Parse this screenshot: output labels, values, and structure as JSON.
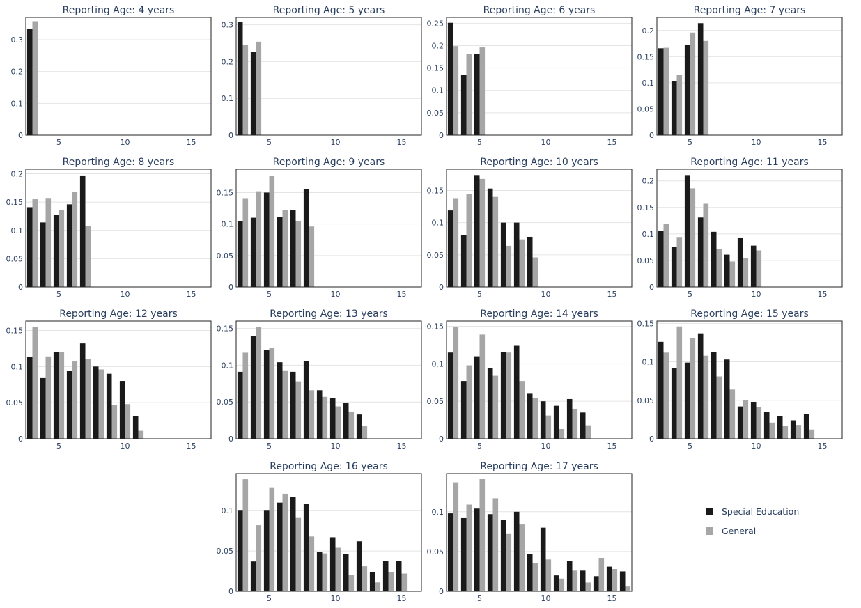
{
  "colors": {
    "special": "#1a1a1a",
    "general": "#a6a6a6",
    "grid": "#e4e4e4",
    "frame": "#222222"
  },
  "legend": {
    "position": "bottom-right",
    "items": [
      {
        "label": "Special Education",
        "color": "#1a1a1a"
      },
      {
        "label": "General",
        "color": "#a6a6a6"
      }
    ]
  },
  "chart_data": [
    {
      "type": "bar",
      "title": "Reporting Age: 4 years",
      "x": [
        3
      ],
      "series": [
        {
          "name": "Special Education",
          "values": [
            0.335
          ]
        },
        {
          "name": "General",
          "values": [
            0.358
          ]
        }
      ],
      "xlim": [
        2.5,
        16.5
      ],
      "ylim": [
        0,
        0.37
      ],
      "yticks": [
        0,
        0.1,
        0.2,
        0.3
      ],
      "xticks": [
        5,
        10,
        15
      ]
    },
    {
      "type": "bar",
      "title": "Reporting Age: 5 years",
      "x": [
        3,
        4
      ],
      "series": [
        {
          "name": "Special Education",
          "values": [
            0.307,
            0.227
          ]
        },
        {
          "name": "General",
          "values": [
            0.246,
            0.254
          ]
        }
      ],
      "xlim": [
        2.5,
        16.5
      ],
      "ylim": [
        0,
        0.32
      ],
      "yticks": [
        0,
        0.1,
        0.2,
        0.3
      ],
      "xticks": [
        5,
        10,
        15
      ]
    },
    {
      "type": "bar",
      "title": "Reporting Age: 6 years",
      "x": [
        3,
        4,
        5
      ],
      "series": [
        {
          "name": "Special Education",
          "values": [
            0.251,
            0.135,
            0.182
          ]
        },
        {
          "name": "General",
          "values": [
            0.199,
            0.182,
            0.196
          ]
        }
      ],
      "xlim": [
        2.5,
        16.5
      ],
      "ylim": [
        0,
        0.263
      ],
      "yticks": [
        0,
        0.05,
        0.1,
        0.15,
        0.2,
        0.25
      ],
      "xticks": [
        5,
        10,
        15
      ]
    },
    {
      "type": "bar",
      "title": "Reporting Age: 7 years",
      "x": [
        3,
        4,
        5,
        6
      ],
      "series": [
        {
          "name": "Special Education",
          "values": [
            0.166,
            0.103,
            0.173,
            0.214
          ]
        },
        {
          "name": "General",
          "values": [
            0.167,
            0.115,
            0.196,
            0.18
          ]
        }
      ],
      "xlim": [
        2.5,
        16.5
      ],
      "ylim": [
        0,
        0.225
      ],
      "yticks": [
        0,
        0.05,
        0.1,
        0.15,
        0.2
      ],
      "xticks": [
        5,
        10,
        15
      ]
    },
    {
      "type": "bar",
      "title": "Reporting Age: 8 years",
      "x": [
        3,
        4,
        5,
        6,
        7
      ],
      "series": [
        {
          "name": "Special Education",
          "values": [
            0.141,
            0.114,
            0.128,
            0.146,
            0.197
          ]
        },
        {
          "name": "General",
          "values": [
            0.155,
            0.156,
            0.136,
            0.168,
            0.108
          ]
        }
      ],
      "xlim": [
        2.5,
        16.5
      ],
      "ylim": [
        0,
        0.208
      ],
      "yticks": [
        0,
        0.05,
        0.1,
        0.15,
        0.2
      ],
      "xticks": [
        5,
        10,
        15
      ]
    },
    {
      "type": "bar",
      "title": "Reporting Age: 9 years",
      "x": [
        3,
        4,
        5,
        6,
        7,
        8
      ],
      "series": [
        {
          "name": "Special Education",
          "values": [
            0.104,
            0.11,
            0.15,
            0.111,
            0.122,
            0.156
          ]
        },
        {
          "name": "General",
          "values": [
            0.14,
            0.152,
            0.177,
            0.122,
            0.104,
            0.096
          ]
        }
      ],
      "xlim": [
        2.5,
        16.5
      ],
      "ylim": [
        0,
        0.187
      ],
      "yticks": [
        0,
        0.05,
        0.1,
        0.15
      ],
      "xticks": [
        5,
        10,
        15
      ]
    },
    {
      "type": "bar",
      "title": "Reporting Age: 10 years",
      "x": [
        3,
        4,
        5,
        6,
        7,
        8,
        9
      ],
      "series": [
        {
          "name": "Special Education",
          "values": [
            0.119,
            0.081,
            0.174,
            0.153,
            0.1,
            0.1,
            0.078
          ]
        },
        {
          "name": "General",
          "values": [
            0.137,
            0.144,
            0.168,
            0.14,
            0.064,
            0.074,
            0.046
          ]
        }
      ],
      "xlim": [
        2.5,
        16.5
      ],
      "ylim": [
        0,
        0.183
      ],
      "yticks": [
        0,
        0.05,
        0.1,
        0.15
      ],
      "xticks": [
        5,
        10,
        15
      ]
    },
    {
      "type": "bar",
      "title": "Reporting Age: 11 years",
      "x": [
        3,
        4,
        5,
        6,
        7,
        8,
        9,
        10
      ],
      "series": [
        {
          "name": "Special Education",
          "values": [
            0.106,
            0.075,
            0.211,
            0.131,
            0.104,
            0.061,
            0.092,
            0.078
          ]
        },
        {
          "name": "General",
          "values": [
            0.119,
            0.093,
            0.186,
            0.157,
            0.071,
            0.048,
            0.055,
            0.069
          ]
        }
      ],
      "xlim": [
        2.5,
        16.5
      ],
      "ylim": [
        0,
        0.222
      ],
      "yticks": [
        0,
        0.05,
        0.1,
        0.15,
        0.2
      ],
      "xticks": [
        5,
        10,
        15
      ]
    },
    {
      "type": "bar",
      "title": "Reporting Age: 12 years",
      "x": [
        3,
        4,
        5,
        6,
        7,
        8,
        9,
        10,
        11
      ],
      "series": [
        {
          "name": "Special Education",
          "values": [
            0.113,
            0.084,
            0.12,
            0.094,
            0.132,
            0.1,
            0.09,
            0.08,
            0.031
          ]
        },
        {
          "name": "General",
          "values": [
            0.155,
            0.114,
            0.12,
            0.107,
            0.11,
            0.096,
            0.047,
            0.048,
            0.011
          ]
        }
      ],
      "xlim": [
        2.5,
        16.5
      ],
      "ylim": [
        0,
        0.163
      ],
      "yticks": [
        0,
        0.05,
        0.1,
        0.15
      ],
      "xticks": [
        5,
        10,
        15
      ]
    },
    {
      "type": "bar",
      "title": "Reporting Age: 13 years",
      "x": [
        3,
        4,
        5,
        6,
        7,
        8,
        9,
        10,
        11,
        12
      ],
      "series": [
        {
          "name": "Special Education",
          "values": [
            0.091,
            0.14,
            0.121,
            0.104,
            0.091,
            0.106,
            0.066,
            0.055,
            0.049,
            0.033
          ]
        },
        {
          "name": "General",
          "values": [
            0.117,
            0.152,
            0.124,
            0.093,
            0.078,
            0.066,
            0.057,
            0.044,
            0.037,
            0.017
          ]
        }
      ],
      "xlim": [
        2.5,
        16.5
      ],
      "ylim": [
        0,
        0.16
      ],
      "yticks": [
        0,
        0.05,
        0.1,
        0.15
      ],
      "xticks": [
        5,
        10,
        15
      ]
    },
    {
      "type": "bar",
      "title": "Reporting Age: 14 years",
      "x": [
        3,
        4,
        5,
        6,
        7,
        8,
        9,
        10,
        11,
        12,
        13
      ],
      "series": [
        {
          "name": "Special Education",
          "values": [
            0.115,
            0.077,
            0.11,
            0.094,
            0.116,
            0.124,
            0.06,
            0.05,
            0.044,
            0.053,
            0.035
          ]
        },
        {
          "name": "General",
          "values": [
            0.149,
            0.098,
            0.139,
            0.084,
            0.115,
            0.077,
            0.054,
            0.031,
            0.013,
            0.04,
            0.018
          ]
        }
      ],
      "xlim": [
        2.5,
        16.5
      ],
      "ylim": [
        0,
        0.157
      ],
      "yticks": [
        0,
        0.05,
        0.1,
        0.15
      ],
      "xticks": [
        5,
        10,
        15
      ]
    },
    {
      "type": "bar",
      "title": "Reporting Age: 15 years",
      "x": [
        3,
        4,
        5,
        6,
        7,
        8,
        9,
        10,
        11,
        12,
        13,
        14
      ],
      "series": [
        {
          "name": "Special Education",
          "values": [
            0.126,
            0.092,
            0.099,
            0.137,
            0.113,
            0.103,
            0.042,
            0.048,
            0.035,
            0.029,
            0.024,
            0.032
          ]
        },
        {
          "name": "General",
          "values": [
            0.112,
            0.146,
            0.131,
            0.108,
            0.081,
            0.064,
            0.05,
            0.041,
            0.021,
            0.017,
            0.018,
            0.012
          ]
        }
      ],
      "xlim": [
        2.5,
        16.5
      ],
      "ylim": [
        0,
        0.153
      ],
      "yticks": [
        0,
        0.05,
        0.1,
        0.15
      ],
      "xticks": [
        5,
        10,
        15
      ]
    },
    {
      "type": "bar",
      "title": "Reporting Age: 16 years",
      "x": [
        3,
        4,
        5,
        6,
        7,
        8,
        9,
        10,
        11,
        12,
        13,
        14,
        15
      ],
      "series": [
        {
          "name": "Special Education",
          "values": [
            0.1,
            0.037,
            0.1,
            0.11,
            0.117,
            0.108,
            0.049,
            0.067,
            0.046,
            0.062,
            0.024,
            0.038,
            0.038
          ]
        },
        {
          "name": "General",
          "values": [
            0.139,
            0.082,
            0.129,
            0.121,
            0.091,
            0.068,
            0.047,
            0.054,
            0.02,
            0.031,
            0.011,
            0.024,
            0.022
          ]
        }
      ],
      "xlim": [
        2.5,
        16.5
      ],
      "ylim": [
        0,
        0.146
      ],
      "yticks": [
        0,
        0.05,
        0.1
      ],
      "xticks": [
        5,
        10,
        15
      ]
    },
    {
      "type": "bar",
      "title": "Reporting Age: 17 years",
      "x": [
        3,
        4,
        5,
        6,
        7,
        8,
        9,
        10,
        11,
        12,
        13,
        14,
        15,
        16
      ],
      "series": [
        {
          "name": "Special Education",
          "values": [
            0.098,
            0.092,
            0.104,
            0.097,
            0.09,
            0.1,
            0.047,
            0.08,
            0.02,
            0.038,
            0.026,
            0.019,
            0.031,
            0.025
          ]
        },
        {
          "name": "General",
          "values": [
            0.137,
            0.109,
            0.141,
            0.117,
            0.072,
            0.084,
            0.035,
            0.04,
            0.016,
            0.026,
            0.011,
            0.042,
            0.028,
            0.006
          ]
        }
      ],
      "xlim": [
        2.5,
        16.5
      ],
      "ylim": [
        0,
        0.148
      ],
      "yticks": [
        0,
        0.05,
        0.1
      ],
      "xticks": [
        5,
        10,
        15
      ]
    }
  ]
}
